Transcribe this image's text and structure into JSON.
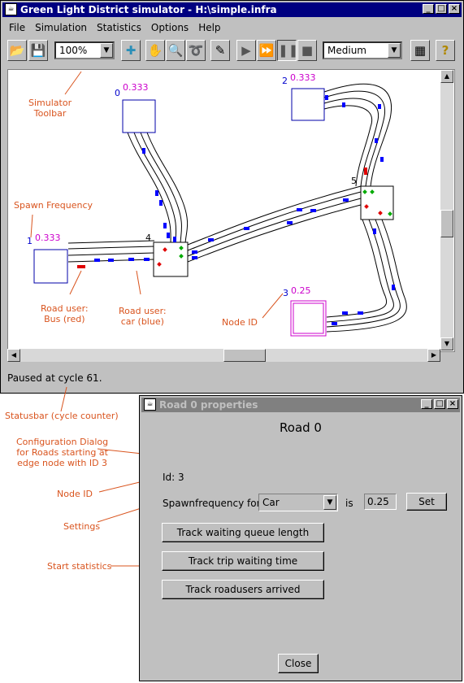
{
  "main_window": {
    "title": "Green Light District simulator - H:\\simple.infra",
    "menu": [
      "File",
      "Simulation",
      "Statistics",
      "Options",
      "Help"
    ],
    "zoom": "100%",
    "speed": "Medium",
    "status": "Paused at cycle 61."
  },
  "nodes": [
    {
      "id": "0",
      "freq": "0.333"
    },
    {
      "id": "1",
      "freq": "0.333"
    },
    {
      "id": "2",
      "freq": "0.333"
    },
    {
      "id": "3",
      "freq": "0.25"
    },
    {
      "id": "4"
    },
    {
      "id": "5"
    }
  ],
  "annotations": {
    "toolbar": "Simulator\nToolbar",
    "spawn": "Spawn Frequency",
    "bus": "Road user:\nBus (red)",
    "car": "Road user:\ncar (blue)",
    "node_id": "Node ID",
    "statusbar": "Statusbar (cycle counter)",
    "config": "Configuration Dialog\nfor Roads starting at\nedge node with ID 3",
    "node_id2": "Node ID",
    "settings": "Settings",
    "start_stats": "Start statistics"
  },
  "dialog": {
    "title": "Road 0 properties",
    "heading": "Road 0",
    "id_text": "Id: 3",
    "spawn_label": "Spawnfrequency for",
    "spawn_type": "Car",
    "is_label": "is",
    "spawn_value": "0.25",
    "set_label": "Set",
    "track1": "Track waiting queue length",
    "track2": "Track trip waiting time",
    "track3": "Track roadusers arrived",
    "close": "Close"
  },
  "colors": {
    "node_label": "#0000cc",
    "freq_label": "#cc00cc",
    "bus": "#e00000",
    "car": "#0000ff",
    "annotation": "#d9541e"
  }
}
